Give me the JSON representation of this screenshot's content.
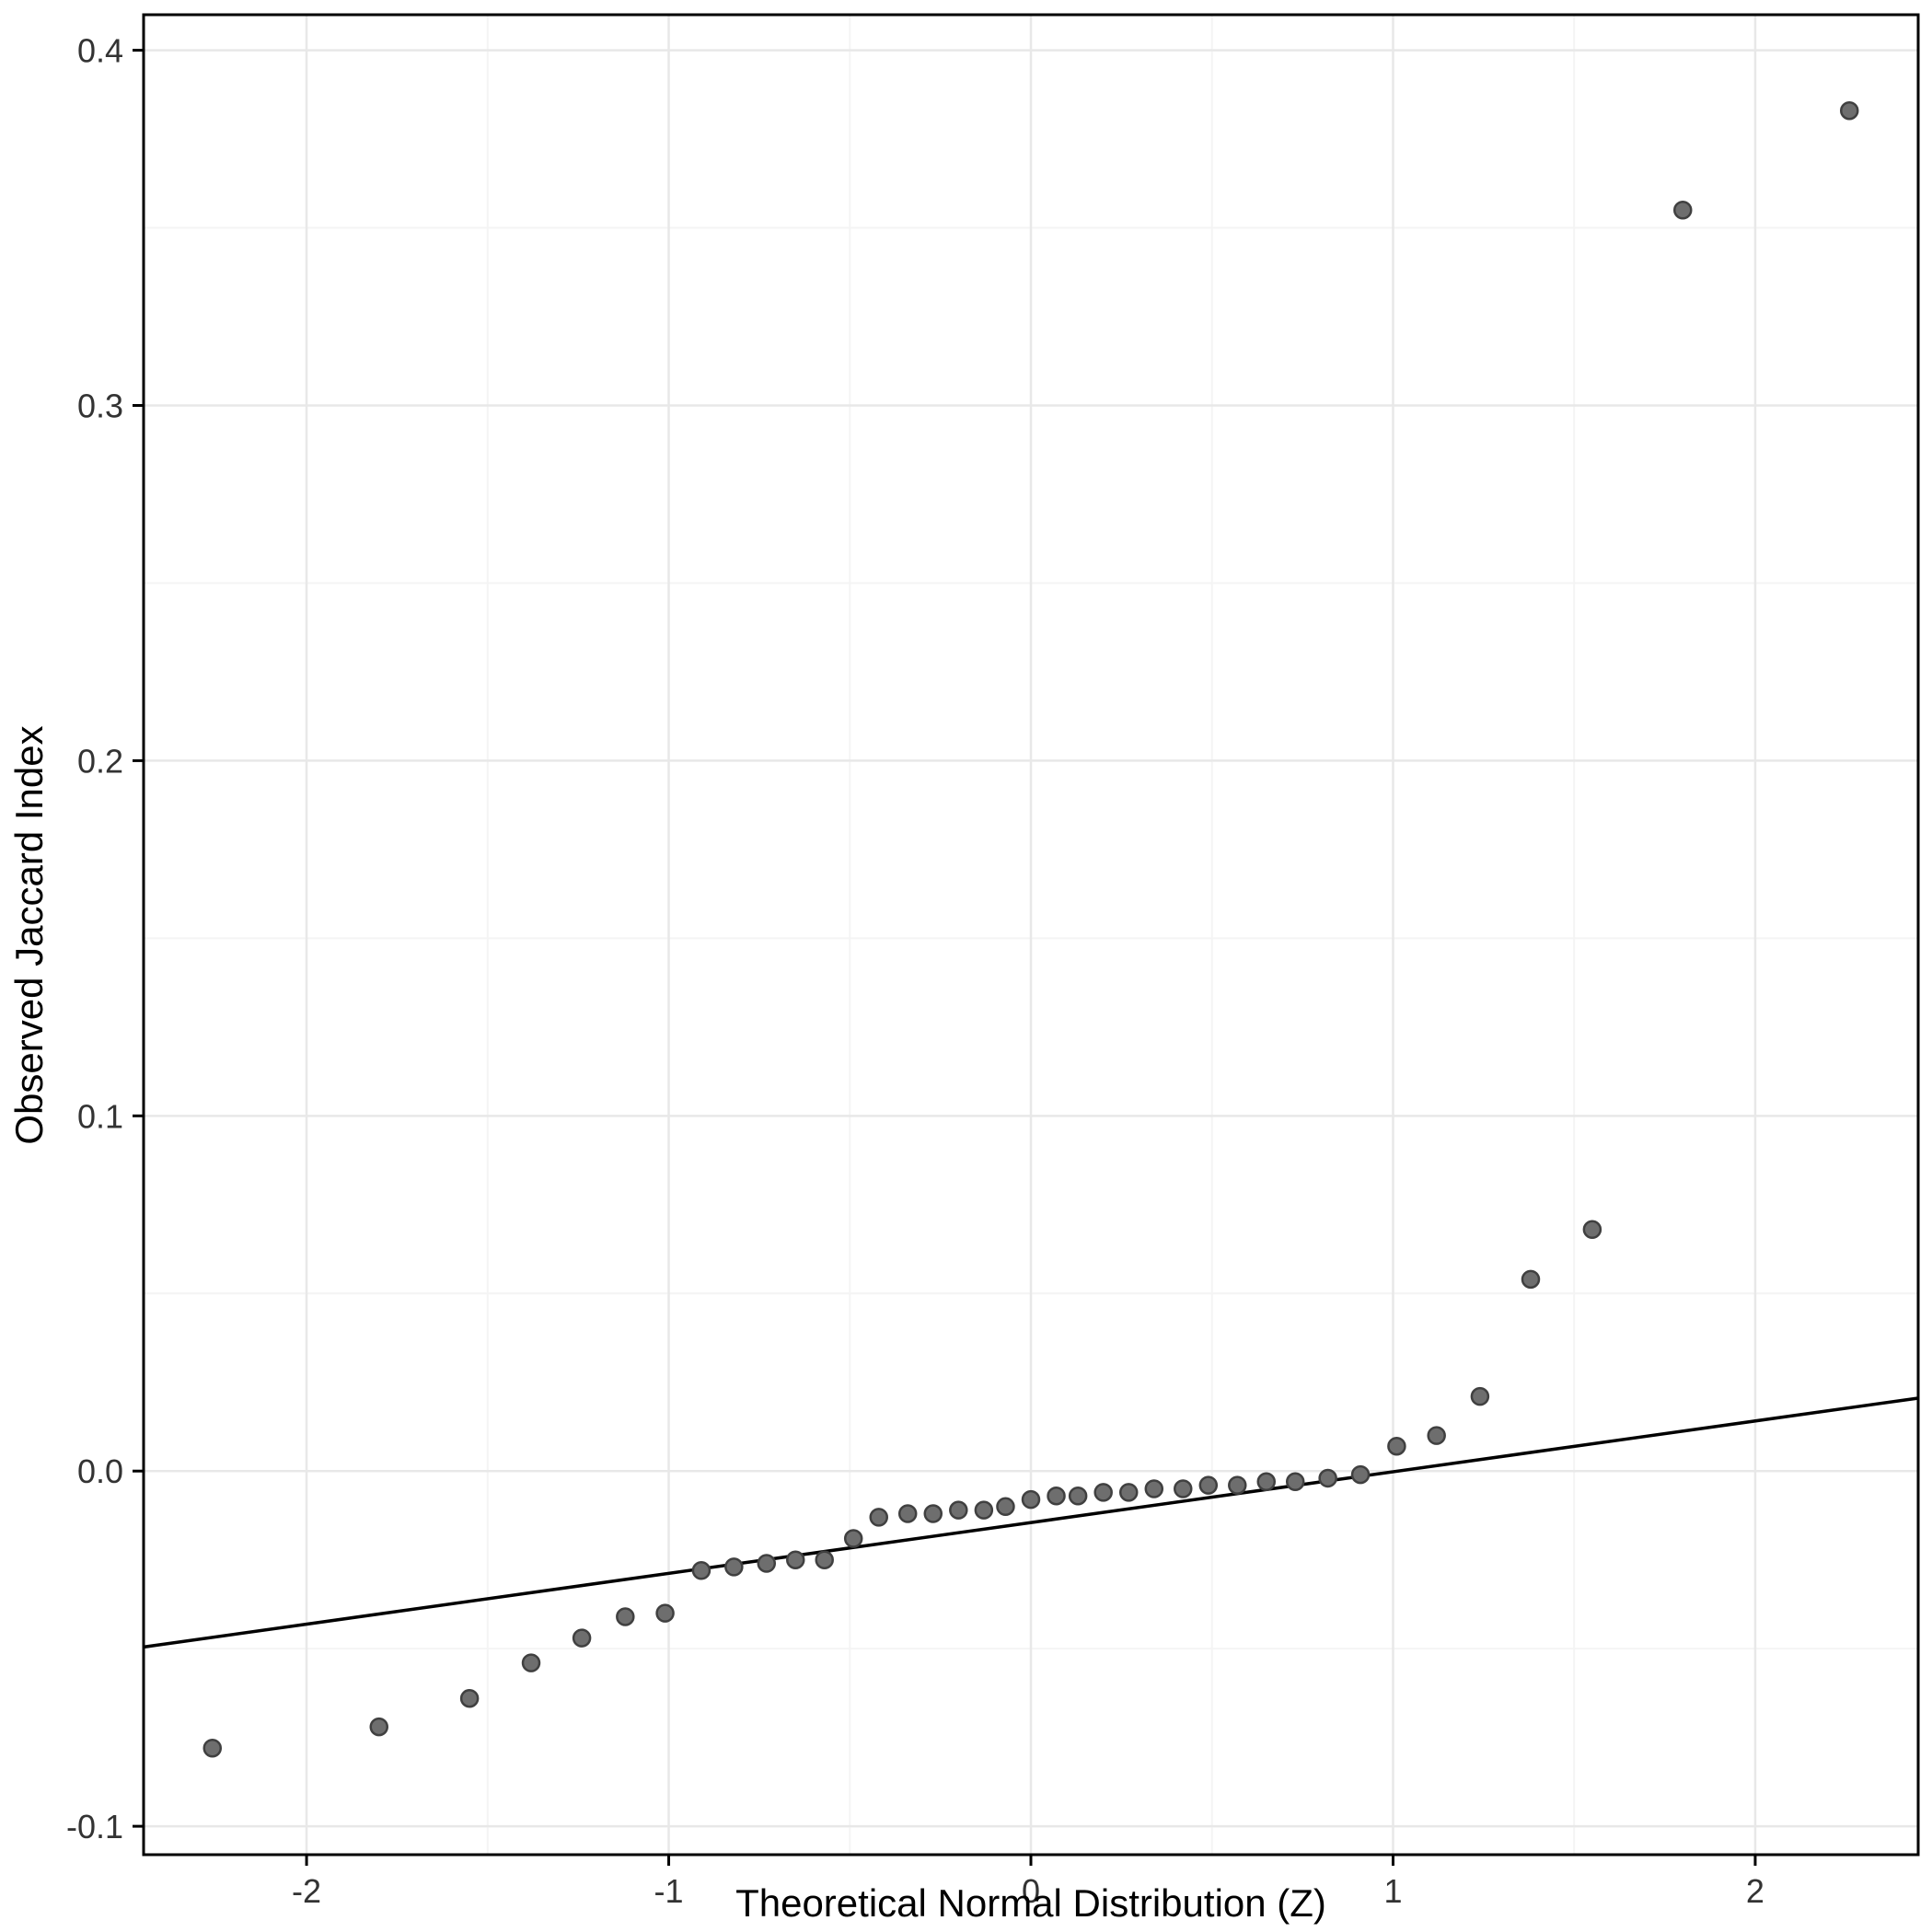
{
  "chart_data": {
    "type": "scatter",
    "title": "",
    "xlabel": "Theoretical Normal Distribution (Z)",
    "ylabel": "Observed Jaccard Index",
    "xlim": [
      -2.45,
      2.45
    ],
    "ylim": [
      -0.108,
      0.41
    ],
    "x_ticks": [
      -2,
      -1,
      0,
      1,
      2
    ],
    "x_tick_labels": [
      "-2",
      "-1",
      "0",
      "1",
      "2"
    ],
    "y_ticks": [
      -0.1,
      0.0,
      0.1,
      0.2,
      0.3,
      0.4
    ],
    "y_tick_labels": [
      "-0.1",
      "0.0",
      "0.1",
      "0.2",
      "0.3",
      "0.4"
    ],
    "x_minor_ticks": [
      -1.5,
      -0.5,
      0.5,
      1.5
    ],
    "y_minor_ticks": [
      -0.05,
      0.05,
      0.15,
      0.25,
      0.35
    ],
    "grid": true,
    "legend": "none",
    "points": [
      [
        -2.26,
        -0.078
      ],
      [
        -1.8,
        -0.072
      ],
      [
        -1.55,
        -0.064
      ],
      [
        -1.38,
        -0.054
      ],
      [
        -1.24,
        -0.047
      ],
      [
        -1.12,
        -0.041
      ],
      [
        -1.01,
        -0.04
      ],
      [
        -0.91,
        -0.028
      ],
      [
        -0.82,
        -0.027
      ],
      [
        -0.73,
        -0.026
      ],
      [
        -0.65,
        -0.025
      ],
      [
        -0.57,
        -0.025
      ],
      [
        -0.49,
        -0.019
      ],
      [
        -0.42,
        -0.013
      ],
      [
        -0.34,
        -0.012
      ],
      [
        -0.27,
        -0.012
      ],
      [
        -0.2,
        -0.011
      ],
      [
        -0.13,
        -0.011
      ],
      [
        -0.07,
        -0.01
      ],
      [
        0.0,
        -0.008
      ],
      [
        0.07,
        -0.007
      ],
      [
        0.13,
        -0.007
      ],
      [
        0.2,
        -0.006
      ],
      [
        0.27,
        -0.006
      ],
      [
        0.34,
        -0.005
      ],
      [
        0.42,
        -0.005
      ],
      [
        0.49,
        -0.004
      ],
      [
        0.57,
        -0.004
      ],
      [
        0.65,
        -0.003
      ],
      [
        0.73,
        -0.003
      ],
      [
        0.82,
        -0.002
      ],
      [
        0.91,
        -0.001
      ],
      [
        1.01,
        0.007
      ],
      [
        1.12,
        0.01
      ],
      [
        1.24,
        0.021
      ],
      [
        1.38,
        0.054
      ],
      [
        1.55,
        0.068
      ],
      [
        1.8,
        0.355
      ],
      [
        2.26,
        0.383
      ]
    ],
    "reference_line": {
      "slope": 0.0143,
      "intercept": -0.0145
    },
    "colors": {
      "point_fill": "#6e6e6e",
      "point_stroke": "#404040",
      "line": "#000000",
      "grid_major": "#e8e8e8",
      "grid_minor": "#f4f4f4",
      "panel_border": "#000000",
      "tick": "#000000",
      "tick_text": "#333333",
      "axis_text": "#000000",
      "background": "#ffffff"
    }
  }
}
